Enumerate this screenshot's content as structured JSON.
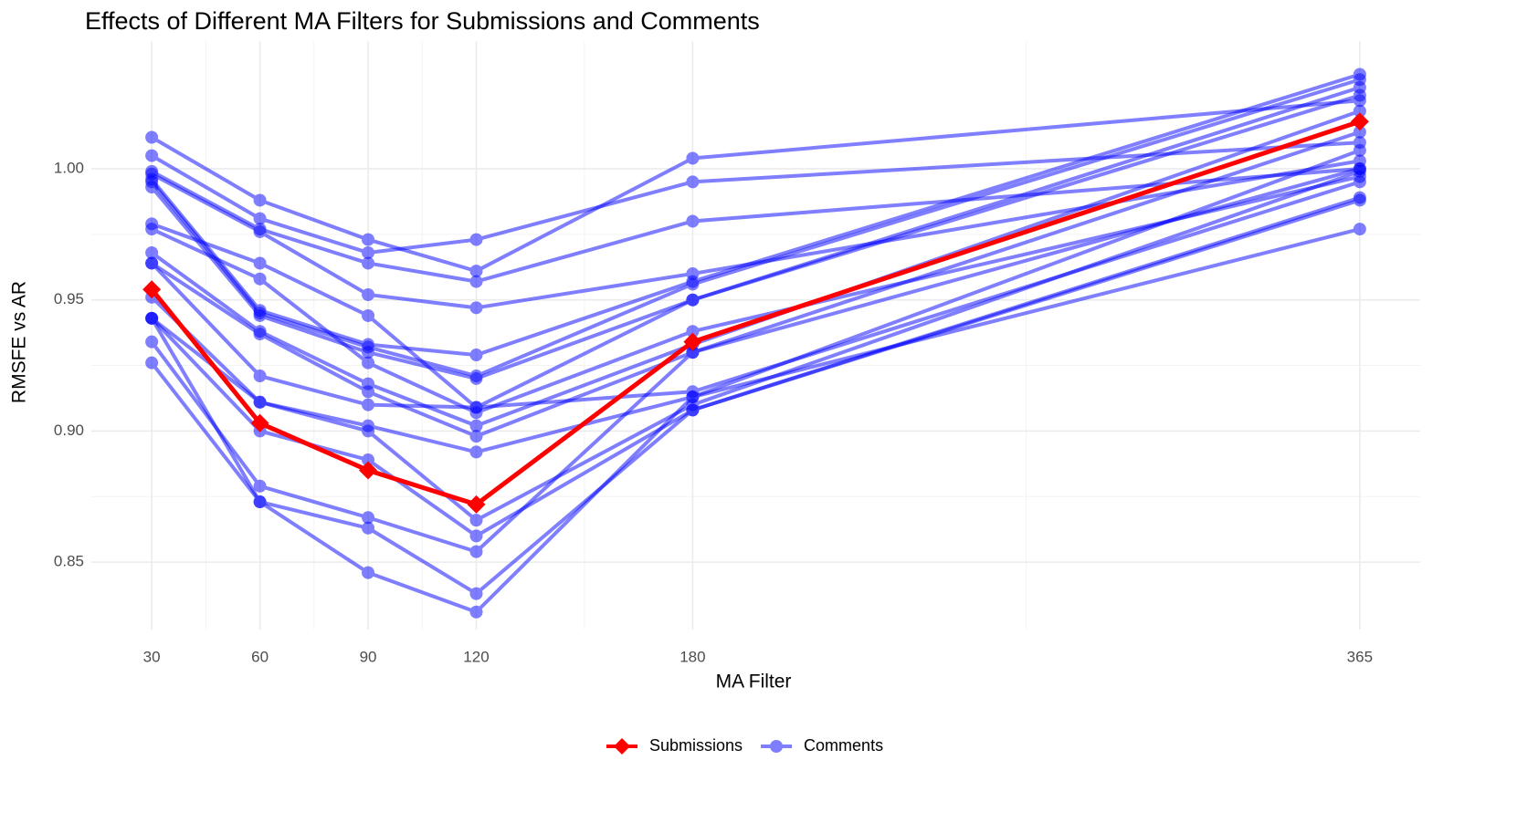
{
  "chart_data": {
    "type": "line",
    "title": "Effects of Different MA Filters for Submissions and Comments",
    "x_label": "MA Filter",
    "y_label": "RMSFE vs AR",
    "x": [
      30,
      60,
      90,
      120,
      180,
      365
    ],
    "xlim": [
      13.25,
      381.75
    ],
    "xticks": [
      30,
      60,
      90,
      120,
      180,
      365
    ],
    "ylim": [
      0.8243,
      1.0487
    ],
    "yticks": [
      {
        "value": 0.85,
        "label": "0.85"
      },
      {
        "value": 0.9,
        "label": "0.90"
      },
      {
        "value": 0.95,
        "label": "0.95"
      },
      {
        "value": 1.0,
        "label": "1.00"
      }
    ],
    "grid": true,
    "legend": "bottom",
    "series": [
      {
        "name": "Submissions",
        "color": "#ff0000",
        "values": [
          0.954,
          0.903,
          0.885,
          0.872,
          0.934,
          1.018
        ]
      },
      {
        "name": "Comments",
        "color": "#0000ff",
        "lines": [
          [
            1.012,
            0.988,
            0.973,
            0.961,
            1.004,
            1.026
          ],
          [
            1.005,
            0.981,
            0.968,
            0.973,
            0.995,
            1.01
          ],
          [
            0.999,
            0.977,
            0.964,
            0.957,
            0.98,
            1.0
          ],
          [
            0.998,
            0.976,
            0.952,
            0.947,
            0.96,
            1.003
          ],
          [
            0.996,
            0.946,
            0.933,
            0.929,
            0.957,
            1.036
          ],
          [
            0.995,
            0.945,
            0.932,
            0.921,
            0.956,
            1.034
          ],
          [
            0.993,
            0.944,
            0.93,
            0.92,
            0.95,
            1.031
          ],
          [
            0.979,
            0.964,
            0.944,
            0.909,
            0.95,
            1.028
          ],
          [
            0.977,
            0.958,
            0.926,
            0.907,
            0.938,
            0.997
          ],
          [
            0.968,
            0.938,
            0.918,
            0.902,
            0.933,
            1.022
          ],
          [
            0.964,
            0.937,
            0.915,
            0.898,
            0.93,
            1.014
          ],
          [
            0.964,
            0.921,
            0.91,
            0.909,
            0.915,
            0.995
          ],
          [
            0.951,
            0.911,
            0.902,
            0.892,
            0.913,
            1.007
          ],
          [
            0.943,
            0.911,
            0.9,
            0.866,
            0.91,
            0.999
          ],
          [
            0.943,
            0.9,
            0.889,
            0.86,
            0.908,
            0.989
          ],
          [
            0.934,
            0.879,
            0.867,
            0.854,
            0.93,
            1.0
          ],
          [
            0.926,
            0.873,
            0.863,
            0.838,
            0.908,
            0.988
          ],
          [
            0.943,
            0.873,
            0.846,
            0.831,
            0.913,
            0.977
          ]
        ]
      }
    ]
  }
}
